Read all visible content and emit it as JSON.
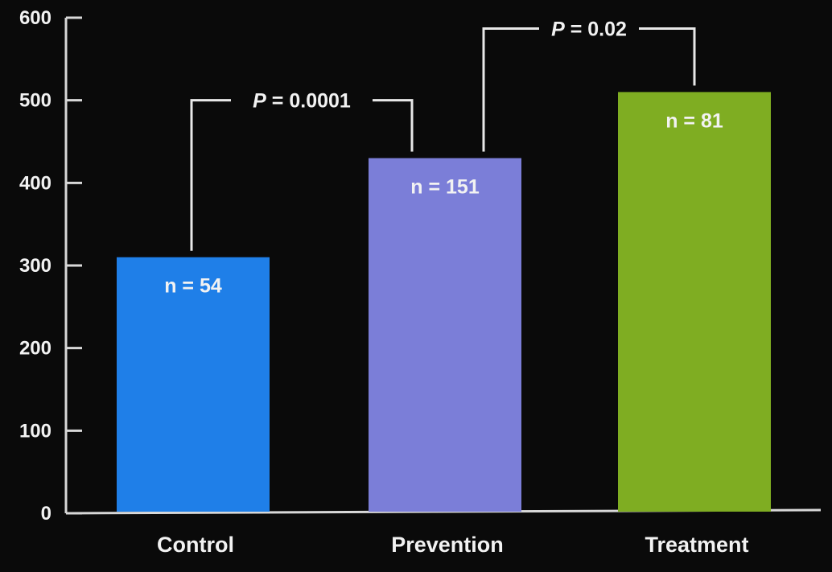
{
  "chart_data": {
    "type": "bar",
    "categories": [
      "Control",
      "Prevention",
      "Treatment"
    ],
    "values": [
      310,
      430,
      510
    ],
    "bar_labels": [
      "n = 54",
      "n = 151",
      "n = 81"
    ],
    "colors": [
      "#1f7fe8",
      "#7b7ed8",
      "#7fad22"
    ],
    "ylim": [
      0,
      600
    ],
    "yticks": [
      0,
      100,
      200,
      300,
      400,
      500,
      600
    ],
    "title": "",
    "xlabel": "",
    "ylabel": "",
    "grid": false,
    "annotations": [
      {
        "from": "Control",
        "to": "Prevention",
        "p_symbol": "P",
        "p_text": " = 0.0001",
        "level": 500
      },
      {
        "from": "Prevention",
        "to": "Treatment",
        "p_symbol": "P",
        "p_text": " = 0.02",
        "level": 580
      }
    ]
  }
}
